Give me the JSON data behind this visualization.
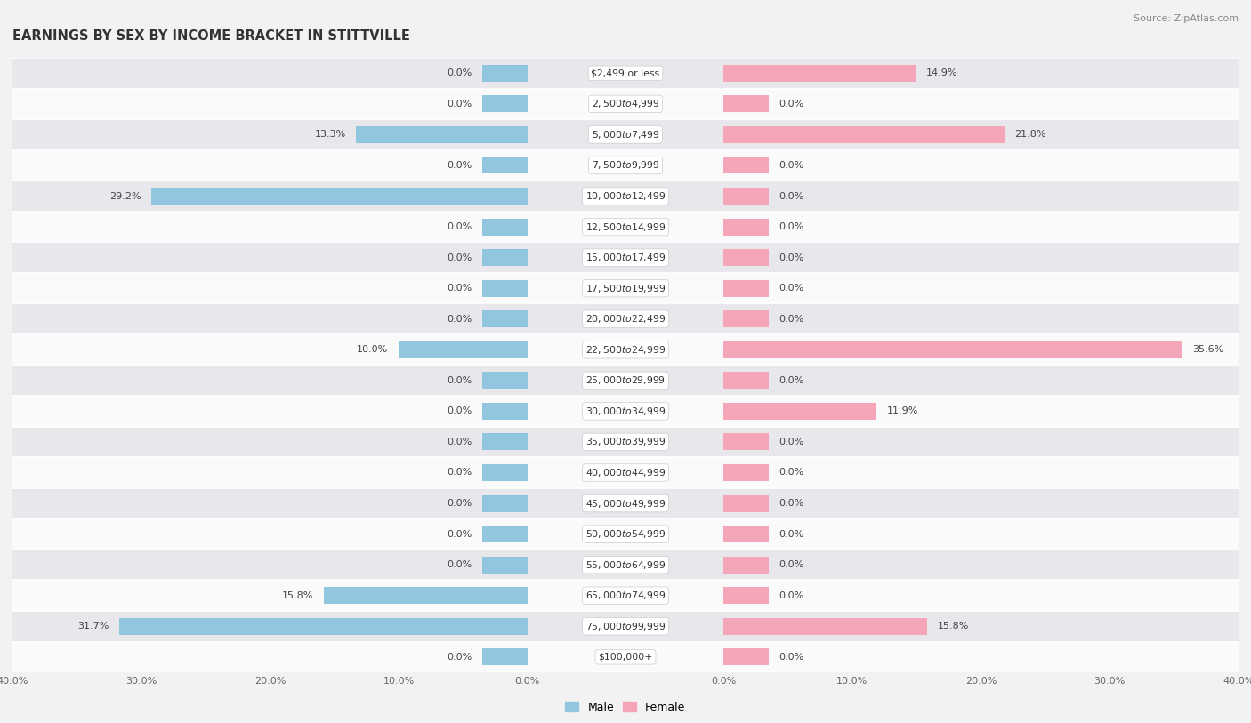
{
  "title": "EARNINGS BY SEX BY INCOME BRACKET IN STITTVILLE",
  "source": "Source: ZipAtlas.com",
  "categories": [
    "$2,499 or less",
    "$2,500 to $4,999",
    "$5,000 to $7,499",
    "$7,500 to $9,999",
    "$10,000 to $12,499",
    "$12,500 to $14,999",
    "$15,000 to $17,499",
    "$17,500 to $19,999",
    "$20,000 to $22,499",
    "$22,500 to $24,999",
    "$25,000 to $29,999",
    "$30,000 to $34,999",
    "$35,000 to $39,999",
    "$40,000 to $44,999",
    "$45,000 to $49,999",
    "$50,000 to $54,999",
    "$55,000 to $64,999",
    "$65,000 to $74,999",
    "$75,000 to $99,999",
    "$100,000+"
  ],
  "male_values": [
    0.0,
    0.0,
    13.3,
    0.0,
    29.2,
    0.0,
    0.0,
    0.0,
    0.0,
    10.0,
    0.0,
    0.0,
    0.0,
    0.0,
    0.0,
    0.0,
    0.0,
    15.8,
    31.7,
    0.0
  ],
  "female_values": [
    14.9,
    0.0,
    21.8,
    0.0,
    0.0,
    0.0,
    0.0,
    0.0,
    0.0,
    35.6,
    0.0,
    11.9,
    0.0,
    0.0,
    0.0,
    0.0,
    0.0,
    0.0,
    15.8,
    0.0
  ],
  "male_color": "#92c5de",
  "female_color": "#f4a6b8",
  "male_color_dark": "#6aafd4",
  "female_color_dark": "#f080a0",
  "male_label": "Male",
  "female_label": "Female",
  "axis_max": 40.0,
  "stub_value": 3.5,
  "background_color": "#f2f2f2",
  "row_color_light": "#fafafa",
  "row_color_dark": "#e8e8ec"
}
